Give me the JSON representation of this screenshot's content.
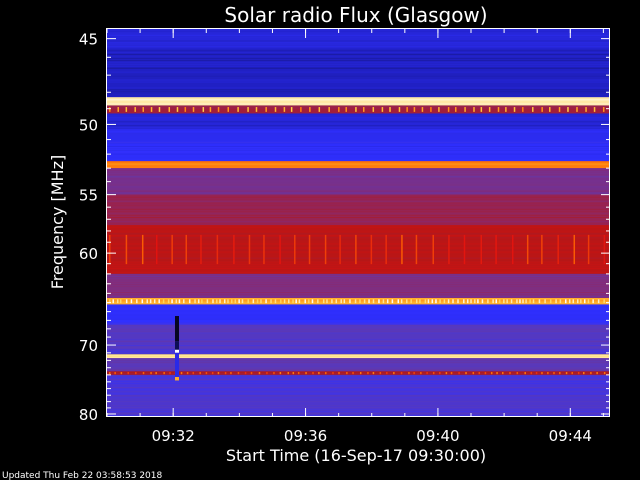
{
  "chart_data": {
    "type": "heatmap",
    "title": "Solar radio Flux (Glasgow)",
    "xlabel": "Start Time (16-Sep-17 09:30:00)",
    "ylabel": "Frequency [MHz]",
    "x_ticks": [
      "09:32",
      "09:36",
      "09:40",
      "09:44"
    ],
    "x_tick_minutes": [
      2,
      6,
      10,
      14
    ],
    "xlim_minutes": [
      0,
      15.2
    ],
    "y_ticks": [
      "45",
      "50",
      "55",
      "60",
      "70",
      "80"
    ],
    "y_tick_values": [
      45,
      50,
      55,
      60,
      70,
      80
    ],
    "ylim": [
      44.5,
      80.5
    ],
    "y_scale": "reciprocal",
    "bands": [
      {
        "from": 44.5,
        "to": 45.5,
        "level": 0.15
      },
      {
        "from": 45.5,
        "to": 48.3,
        "level": 0.12
      },
      {
        "from": 48.3,
        "to": 48.8,
        "level": 0.95
      },
      {
        "from": 48.8,
        "to": 49.3,
        "level": 0.5
      },
      {
        "from": 49.3,
        "to": 50.3,
        "level": 0.15
      },
      {
        "from": 50.3,
        "to": 51.3,
        "level": 0.2
      },
      {
        "from": 51.3,
        "to": 52.5,
        "level": 0.22
      },
      {
        "from": 52.5,
        "to": 53.0,
        "level": 0.8
      },
      {
        "from": 53.0,
        "to": 55.0,
        "level": 0.4
      },
      {
        "from": 55.0,
        "to": 57.5,
        "level": 0.48
      },
      {
        "from": 57.5,
        "to": 62.0,
        "level": 0.58
      },
      {
        "from": 62.0,
        "to": 64.5,
        "level": 0.42
      },
      {
        "from": 64.5,
        "to": 65.2,
        "level": 0.85
      },
      {
        "from": 65.2,
        "to": 67.5,
        "level": 0.22
      },
      {
        "from": 67.5,
        "to": 70.5,
        "level": 0.32
      },
      {
        "from": 70.5,
        "to": 71.2,
        "level": 0.3
      },
      {
        "from": 71.2,
        "to": 71.7,
        "level": 0.95
      },
      {
        "from": 71.7,
        "to": 73.5,
        "level": 0.34
      },
      {
        "from": 73.5,
        "to": 74.0,
        "level": 0.55
      },
      {
        "from": 74.0,
        "to": 77.0,
        "level": 0.28
      },
      {
        "from": 77.0,
        "to": 80.5,
        "level": 0.3
      }
    ],
    "colors": {
      "scale": [
        "#000000",
        "#2020c0",
        "#3030ff",
        "#5a3ab8",
        "#8a2a70",
        "#b01818",
        "#e01010",
        "#ff6a00",
        "#ffd040",
        "#ffffff"
      ],
      "background": "#000000",
      "text": "#ffffff"
    }
  },
  "footer": {
    "updated": "Updated Thu Feb 22 03:58:53 2018"
  }
}
